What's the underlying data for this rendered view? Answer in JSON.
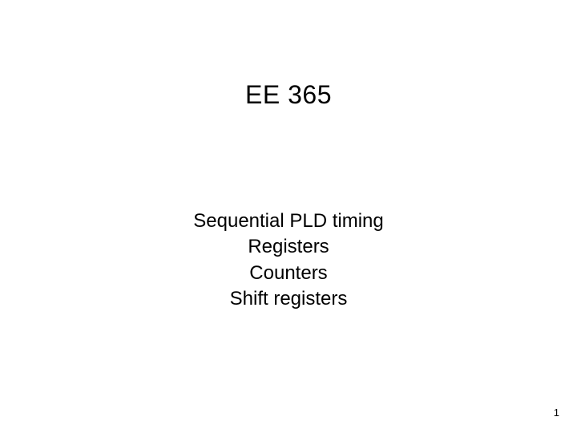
{
  "slide": {
    "title": "EE 365",
    "topics": [
      "Sequential PLD timing",
      "Registers",
      "Counters",
      "Shift registers"
    ],
    "page_number": "1",
    "background_color": "#ffffff",
    "text_color": "#000000",
    "title_fontsize": 32,
    "topic_fontsize": 24,
    "page_number_fontsize": 13
  }
}
